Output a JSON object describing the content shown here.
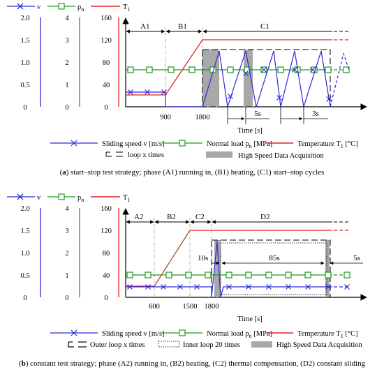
{
  "colors": {
    "speed": "#2a2ad6",
    "load": "#1f9a1f",
    "temp": "#e02222",
    "gray": "#a8a8a8",
    "brown": "#a0522d"
  },
  "panel_a": {
    "caption_letter": "a",
    "caption_text": " start–stop test strategy; phase (A1) running in, (B1) heating, (C1) start–stop cycles",
    "phases": [
      "A1",
      "B1",
      "C1"
    ],
    "time_ticks": [
      "900",
      "1800"
    ],
    "time_label": "Time [s]",
    "interval_labels": [
      "5s",
      "3s"
    ],
    "legend": {
      "speed": "Sliding speed v [m/s]",
      "load_prefix": "Normal load p",
      "load_suffix": " [MPa]",
      "temp_prefix": "Temperature T",
      "temp_suffix": " [°C]",
      "loop": "loop x times",
      "hsda": "High Speed Data Acquisition"
    }
  },
  "panel_b": {
    "caption_letter": "b",
    "caption_text": " constant test strategy; phase (A2) running in, (B2) heating, (C2) thermal compensation, (D2) constant sliding",
    "phases": [
      "A2",
      "B2",
      "C2",
      "D2"
    ],
    "time_ticks": [
      "600",
      "1500",
      "1800"
    ],
    "time_label": "Time [s]",
    "interval_labels": [
      "10s",
      "85s",
      "5s"
    ],
    "legend": {
      "speed": "Sliding speed v [m/s]",
      "load_prefix": "Normal load p",
      "load_suffix": " [MPa]",
      "temp_prefix": "Temperature T",
      "temp_suffix": " [°C]",
      "outer": "Outer loop x times",
      "inner": "Inner loop 20 times",
      "hsda": "High Speed Data Acquisition"
    }
  },
  "axes": {
    "v": {
      "name": "v",
      "ticks": [
        "2.0",
        "1.5",
        "1.0",
        "0.5",
        "0"
      ]
    },
    "p": {
      "name_base": "p",
      "name_sub": "n",
      "ticks": [
        "4",
        "3",
        "2",
        "1",
        "0"
      ]
    },
    "T": {
      "name_base": "T",
      "name_sub": "1",
      "ticks": [
        "160",
        "120",
        "80",
        "40",
        "0"
      ]
    }
  },
  "chart_data": [
    {
      "type": "line",
      "x_units": "s",
      "xlabel": "Time [s]",
      "y_axes": [
        {
          "name": "v",
          "unit": "m/s",
          "ylim": [
            0,
            2.0
          ]
        },
        {
          "name": "pn",
          "unit": "MPa",
          "ylim": [
            0,
            4
          ]
        },
        {
          "name": "T1",
          "unit": "°C",
          "ylim": [
            0,
            160
          ]
        }
      ],
      "x_ticks": [
        900,
        1800
      ],
      "series": [
        {
          "name": "Sliding speed v [m/s]",
          "axis": "v",
          "points": [
            [
              0,
              0.25
            ],
            [
              900,
              0.25
            ],
            [
              900,
              0
            ],
            [
              1800,
              0
            ]
          ],
          "note": "start–stop cycles in C1: peaks ≈1.2, returning to 0"
        },
        {
          "name": "Normal load pn [MPa]",
          "axis": "pn",
          "points": [
            [
              0,
              1.7
            ],
            [
              1800,
              1.7
            ]
          ]
        },
        {
          "name": "Temperature T1 [°C]",
          "axis": "T1",
          "points": [
            [
              0,
              20
            ],
            [
              900,
              20
            ],
            [
              1800,
              120
            ]
          ]
        }
      ]
    },
    {
      "type": "line",
      "x_units": "s",
      "xlabel": "Time [s]",
      "y_axes": [
        {
          "name": "v",
          "unit": "m/s",
          "ylim": [
            0,
            2.0
          ]
        },
        {
          "name": "pn",
          "unit": "MPa",
          "ylim": [
            0,
            4
          ]
        },
        {
          "name": "T1",
          "unit": "°C",
          "ylim": [
            0,
            160
          ]
        }
      ],
      "x_ticks": [
        600,
        1500,
        1800
      ],
      "series": [
        {
          "name": "Sliding speed v [m/s]",
          "axis": "v",
          "points": [
            [
              0,
              0.25
            ],
            [
              1800,
              0.25
            ]
          ]
        },
        {
          "name": "Normal load pn [MPa]",
          "axis": "pn",
          "points": [
            [
              0,
              1.05
            ],
            [
              1800,
              1.05
            ]
          ]
        },
        {
          "name": "Temperature T1 [°C]",
          "axis": "T1",
          "points": [
            [
              0,
              20
            ],
            [
              600,
              20
            ],
            [
              1500,
              120
            ],
            [
              1800,
              120
            ]
          ]
        }
      ]
    }
  ]
}
